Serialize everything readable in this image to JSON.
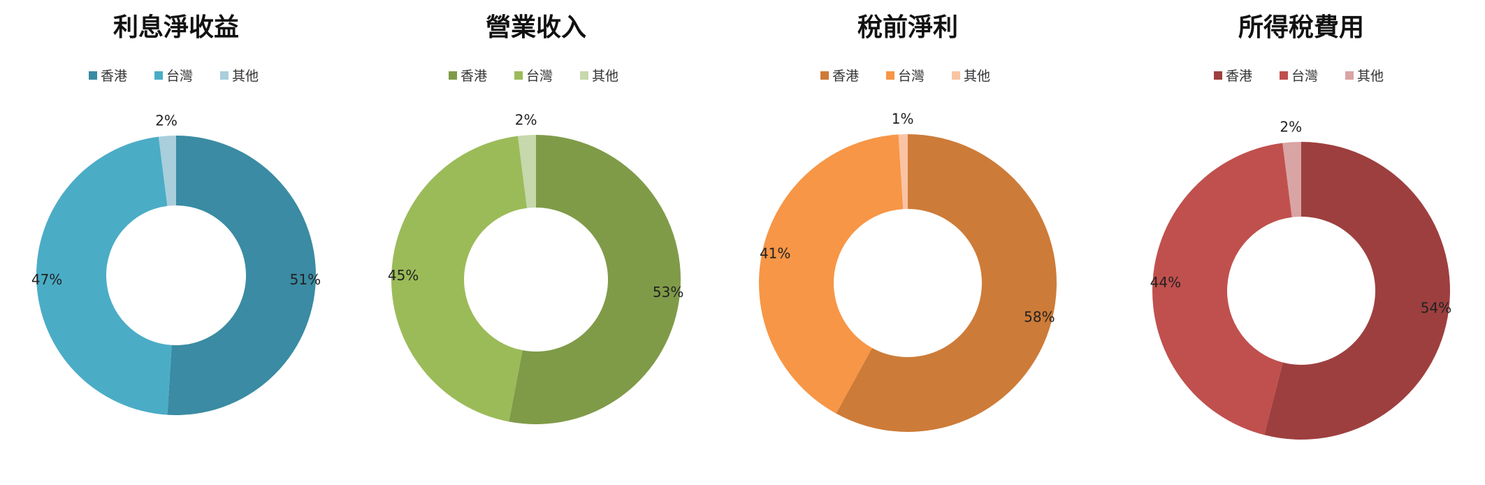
{
  "chart_data": [
    {
      "type": "donut",
      "title": "利息淨收益",
      "categories": [
        "香港",
        "台灣",
        "其他"
      ],
      "values": [
        51,
        47,
        2
      ],
      "value_labels": [
        "51%",
        "47%",
        "2%"
      ],
      "colors": [
        "#3A8BA3",
        "#4BACC6",
        "#A9CEDC"
      ],
      "legend_placement": "top"
    },
    {
      "type": "donut",
      "title": "營業收入",
      "categories": [
        "香港",
        "台灣",
        "其他"
      ],
      "values": [
        53,
        45,
        2
      ],
      "value_labels": [
        "53%",
        "45%",
        "2%"
      ],
      "colors": [
        "#7F9B48",
        "#9BBB59",
        "#C6D8AC"
      ],
      "legend_placement": "top"
    },
    {
      "type": "donut",
      "title": "稅前淨利",
      "categories": [
        "香港",
        "台灣",
        "其他"
      ],
      "values": [
        58,
        41,
        1
      ],
      "value_labels": [
        "58%",
        "41%",
        "1%"
      ],
      "colors": [
        "#CD7B38",
        "#F79646",
        "#FAC4A4"
      ],
      "legend_placement": "top"
    },
    {
      "type": "donut",
      "title": "所得稅費用",
      "categories": [
        "香港",
        "台灣",
        "其他"
      ],
      "values": [
        54,
        44,
        2
      ],
      "value_labels": [
        "54%",
        "44%",
        "2%"
      ],
      "colors": [
        "#9E3F3F",
        "#C0504D",
        "#D9A4A4"
      ],
      "legend_placement": "top"
    }
  ]
}
